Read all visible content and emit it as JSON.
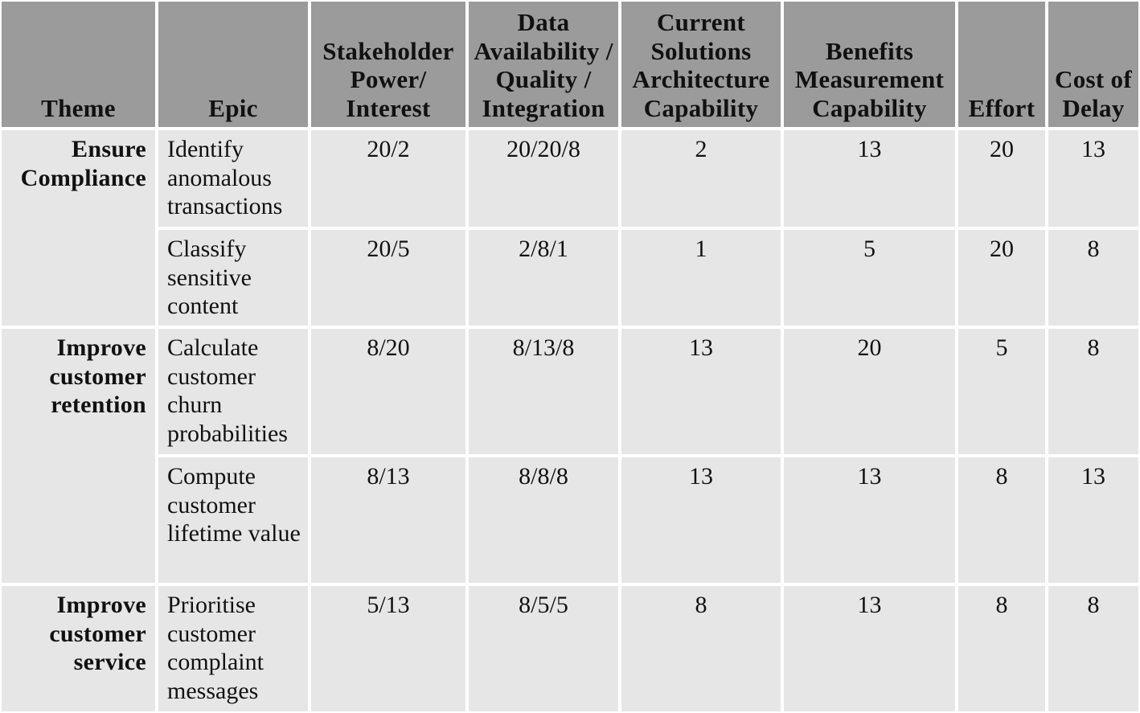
{
  "headers": {
    "theme": "Theme",
    "epic": "Epic",
    "stakeholder": "Stakeholder Power/ Interest",
    "data": "Data Availability / Quality / Integration",
    "architecture": "Current Solutions Architecture Capability",
    "benefits": "Benefits Measurement Capability",
    "effort": "Effort",
    "cost_of_delay": "Cost of Delay"
  },
  "themes": [
    {
      "label": "Ensure Compliance"
    },
    {
      "label": "Improve customer retention"
    },
    {
      "label": "Improve customer service"
    }
  ],
  "rows": [
    {
      "epic": "Identify anomalous transactions",
      "stakeholder": "20/2",
      "data": "20/20/8",
      "architecture": "2",
      "benefits": "13",
      "effort": "20",
      "cost_of_delay": "13"
    },
    {
      "epic": "Classify sensitive content",
      "stakeholder": "20/5",
      "data": "2/8/1",
      "architecture": "1",
      "benefits": "5",
      "effort": "20",
      "cost_of_delay": "8"
    },
    {
      "epic": "Calculate customer churn probabilities",
      "stakeholder": "8/20",
      "data": "8/13/8",
      "architecture": "13",
      "benefits": "20",
      "effort": "5",
      "cost_of_delay": "8"
    },
    {
      "epic": "Compute customer lifetime value",
      "stakeholder": "8/13",
      "data": "8/8/8",
      "architecture": "13",
      "benefits": "13",
      "effort": "8",
      "cost_of_delay": "13"
    },
    {
      "epic": "Prioritise customer complaint messages",
      "stakeholder": "5/13",
      "data": "8/5/5",
      "architecture": "8",
      "benefits": "13",
      "effort": "8",
      "cost_of_delay": "8"
    }
  ]
}
